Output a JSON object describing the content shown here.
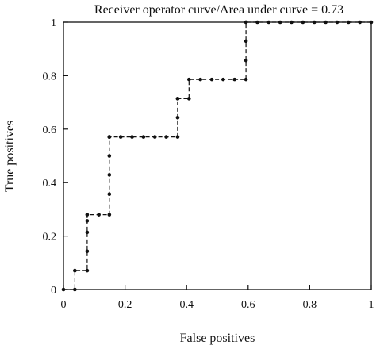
{
  "chart_data": {
    "type": "line",
    "title": "Receiver operator curve/Area under curve = 0.73",
    "xlabel": "False positives",
    "ylabel": "True positives",
    "xlim": [
      0,
      1
    ],
    "ylim": [
      0,
      1
    ],
    "x_ticks": [
      0,
      0.2,
      0.4,
      0.6,
      0.8,
      1
    ],
    "x_tick_labels": [
      "0",
      "0.2",
      "0.4",
      "0.6",
      "0.8",
      "1"
    ],
    "y_ticks": [
      0,
      0.2,
      0.4,
      0.6,
      0.8,
      1
    ],
    "y_tick_labels": [
      "0",
      "0.2",
      "0.4",
      "0.6",
      "0.8",
      "1"
    ],
    "grid": false,
    "line_style": "dashed",
    "marker": "dot",
    "color": "#111111",
    "series": [
      {
        "x": [
          0,
          0.037,
          0.037,
          0.077,
          0.077,
          0.077,
          0.077,
          0.077,
          0.115,
          0.149,
          0.149,
          0.149,
          0.149,
          0.149,
          0.149,
          0.149,
          0.186,
          0.223,
          0.26,
          0.297,
          0.334,
          0.371,
          0.371,
          0.371,
          0.371,
          0.408,
          0.408,
          0.445,
          0.482,
          0.519,
          0.556,
          0.593,
          0.593,
          0.593,
          0.593,
          0.593,
          0.63,
          0.667,
          0.704,
          0.741,
          0.778,
          0.815,
          0.852,
          0.889,
          0.926,
          0.963,
          1.0
        ],
        "y": [
          0,
          0,
          0.071,
          0.071,
          0.143,
          0.214,
          0.257,
          0.28,
          0.28,
          0.28,
          0.357,
          0.429,
          0.5,
          0.571,
          0.571,
          0.571,
          0.571,
          0.571,
          0.571,
          0.571,
          0.571,
          0.571,
          0.643,
          0.714,
          0.714,
          0.714,
          0.786,
          0.786,
          0.786,
          0.786,
          0.786,
          0.786,
          0.857,
          0.929,
          1.0,
          1.0,
          1.0,
          1.0,
          1.0,
          1.0,
          1.0,
          1.0,
          1.0,
          1.0,
          1.0,
          1.0,
          1.0
        ]
      }
    ]
  }
}
